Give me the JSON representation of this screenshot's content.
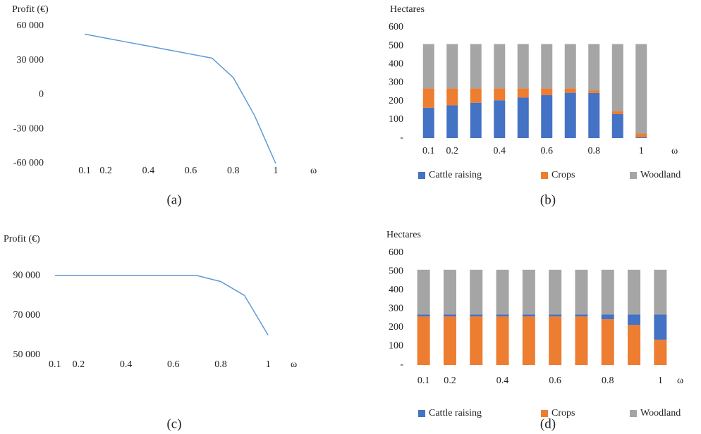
{
  "chart_data": [
    {
      "type": "line",
      "caption": "(a)",
      "y_label": "Profit (€)",
      "x_label": "ω",
      "categories": [
        "0.1",
        "0.2",
        null,
        "0.4",
        null,
        "0.6",
        null,
        "0.8",
        null,
        "1"
      ],
      "series": [
        {
          "name": "Profit",
          "color": "#5b9bd5",
          "values": [
            53000,
            49500,
            46000,
            42500,
            39000,
            35500,
            32000,
            15000,
            -18000,
            -60000
          ]
        }
      ],
      "ylim": [
        -60000,
        60000
      ],
      "yticks": [
        {
          "value": -60000,
          "label": "-60 000"
        },
        {
          "value": -30000,
          "label": "-30 000"
        },
        0,
        {
          "value": 30000,
          "label": "30 000"
        },
        {
          "value": 60000,
          "label": "60 000"
        }
      ]
    },
    {
      "type": "stacked_bar",
      "caption": "(b)",
      "y_label": "Hectares",
      "x_label": "ω",
      "categories": [
        "0.1",
        "0.2",
        null,
        "0.4",
        null,
        "0.6",
        null,
        "0.8",
        null,
        "1"
      ],
      "series": [
        {
          "name": "Cattle raising",
          "color": "#4472c4",
          "values": [
            165,
            178,
            192,
            205,
            220,
            233,
            246,
            245,
            130,
            5
          ]
        },
        {
          "name": "Crops",
          "color": "#ed7d31",
          "values": [
            105,
            92,
            78,
            65,
            50,
            37,
            24,
            13,
            15,
            20
          ]
        },
        {
          "name": "Woodland",
          "color": "#a5a5a5",
          "values": [
            240,
            240,
            240,
            240,
            240,
            240,
            240,
            252,
            365,
            485
          ]
        }
      ],
      "ylim": [
        0,
        600
      ],
      "yticks": [
        {
          "value": 0,
          "label": "-"
        },
        100,
        200,
        300,
        400,
        500,
        600
      ]
    },
    {
      "type": "line",
      "caption": "(c)",
      "y_label": "Profit (€)",
      "x_label": "ω",
      "categories": [
        "0.1",
        "0.2",
        null,
        "0.4",
        null,
        "0.6",
        null,
        "0.8",
        null,
        "1"
      ],
      "series": [
        {
          "name": "Profit",
          "color": "#5b9bd5",
          "values": [
            90000,
            90000,
            90000,
            90000,
            90000,
            90000,
            90000,
            87000,
            80000,
            60000
          ]
        }
      ],
      "ylim": [
        50000,
        95000
      ],
      "yticks": [
        {
          "value": 50000,
          "label": "50 000"
        },
        {
          "value": 70000,
          "label": "70 000"
        },
        {
          "value": 90000,
          "label": "90 000"
        }
      ]
    },
    {
      "type": "stacked_bar",
      "caption": "(d)",
      "y_label": "Hectares",
      "x_label": "ω",
      "categories": [
        "0.1",
        "0.2",
        null,
        "0.4",
        null,
        "0.6",
        null,
        "0.8",
        null,
        "1"
      ],
      "series": [
        {
          "name": "Cattle raising",
          "color": "#4472c4",
          "values": [
            10,
            10,
            10,
            10,
            10,
            10,
            10,
            25,
            55,
            135
          ]
        },
        {
          "name": "Crops",
          "color": "#ed7d31",
          "values": [
            260,
            260,
            260,
            260,
            260,
            260,
            260,
            245,
            215,
            135
          ]
        },
        {
          "name": "Woodland",
          "color": "#a5a5a5",
          "values": [
            240,
            240,
            240,
            240,
            240,
            240,
            240,
            240,
            240,
            240
          ]
        }
      ],
      "ylim": [
        0,
        600
      ],
      "yticks": [
        {
          "value": 0,
          "label": "-"
        },
        100,
        200,
        300,
        400,
        500,
        600
      ]
    }
  ]
}
